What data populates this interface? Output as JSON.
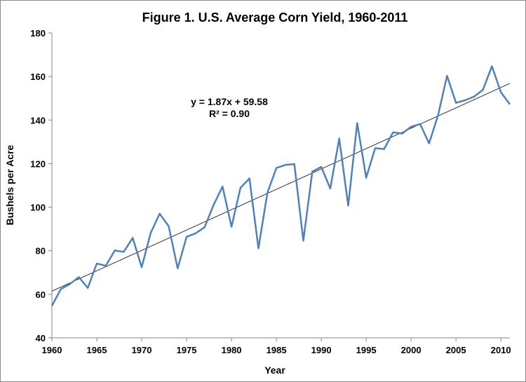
{
  "chart_data": {
    "type": "line",
    "title": "Figure 1. U.S. Average Corn Yield, 1960-2011",
    "xlabel": "Year",
    "ylabel": "Bushels per Acre",
    "xlim": [
      1960,
      2011
    ],
    "ylim": [
      40,
      180
    ],
    "xticks": [
      1960,
      1965,
      1970,
      1975,
      1980,
      1985,
      1990,
      1995,
      2000,
      2005,
      2010
    ],
    "yticks": [
      40,
      60,
      80,
      100,
      120,
      140,
      160,
      180
    ],
    "grid": false,
    "colors": {
      "series": "#4f81bd",
      "trendline": "#000000"
    },
    "series": [
      {
        "x": [
          1960,
          1961,
          1962,
          1963,
          1964,
          1965,
          1966,
          1967,
          1968,
          1969,
          1970,
          1971,
          1972,
          1973,
          1974,
          1975,
          1976,
          1977,
          1978,
          1979,
          1980,
          1981,
          1982,
          1983,
          1984,
          1985,
          1986,
          1987,
          1988,
          1989,
          1990,
          1991,
          1992,
          1993,
          1994,
          1995,
          1996,
          1997,
          1998,
          1999,
          2000,
          2001,
          2002,
          2003,
          2004,
          2005,
          2006,
          2007,
          2008,
          2009,
          2010,
          2011
        ],
        "values": [
          54.7,
          62.4,
          64.7,
          67.9,
          62.9,
          74.1,
          73.1,
          80.1,
          79.5,
          85.9,
          72.4,
          88.1,
          97.0,
          91.3,
          71.9,
          86.4,
          88.0,
          90.8,
          101.0,
          109.5,
          91.0,
          108.9,
          113.2,
          81.1,
          106.7,
          118.0,
          119.4,
          119.8,
          84.6,
          116.3,
          118.5,
          108.6,
          131.5,
          100.7,
          138.6,
          113.5,
          127.1,
          126.7,
          134.4,
          133.8,
          136.9,
          138.2,
          129.3,
          142.2,
          160.3,
          147.9,
          149.1,
          150.7,
          153.9,
          164.7,
          152.8,
          147.2
        ]
      }
    ],
    "trendline": {
      "slope": 1.87,
      "intercept": 59.58,
      "equation_text": "y = 1.87x + 59.58",
      "r2_text": "R² = 0.90"
    }
  }
}
